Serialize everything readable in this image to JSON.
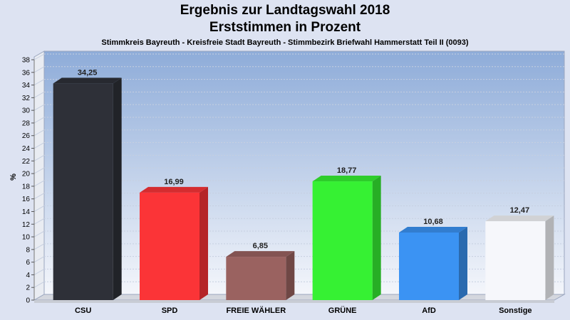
{
  "chart_data": {
    "type": "bar",
    "title": "Ergebnis zur Landtagswahl 2018",
    "title2": "Erststimmen in Prozent",
    "subtitle": "Stimmkreis Bayreuth - Kreisfreie Stadt Bayreuth - Stimmbezirk Briefwahl Hammerstatt Teil II (0093)",
    "ylabel": "%",
    "ylim": [
      0,
      38
    ],
    "ytick_step": 2,
    "categories": [
      "CSU",
      "SPD",
      "FREIE WÄHLER",
      "GRÜNE",
      "AfD",
      "Sonstige"
    ],
    "values": [
      34.25,
      16.99,
      6.85,
      18.77,
      10.68,
      12.47
    ],
    "value_labels": [
      "34,25",
      "16,99",
      "6,85",
      "18,77",
      "10,68",
      "12,47"
    ],
    "colors": [
      "#2e3038",
      "#fb3437",
      "#9a6260",
      "#36f133",
      "#3b93f3",
      "#f6f7fb"
    ],
    "grid": true,
    "legend": "none"
  }
}
